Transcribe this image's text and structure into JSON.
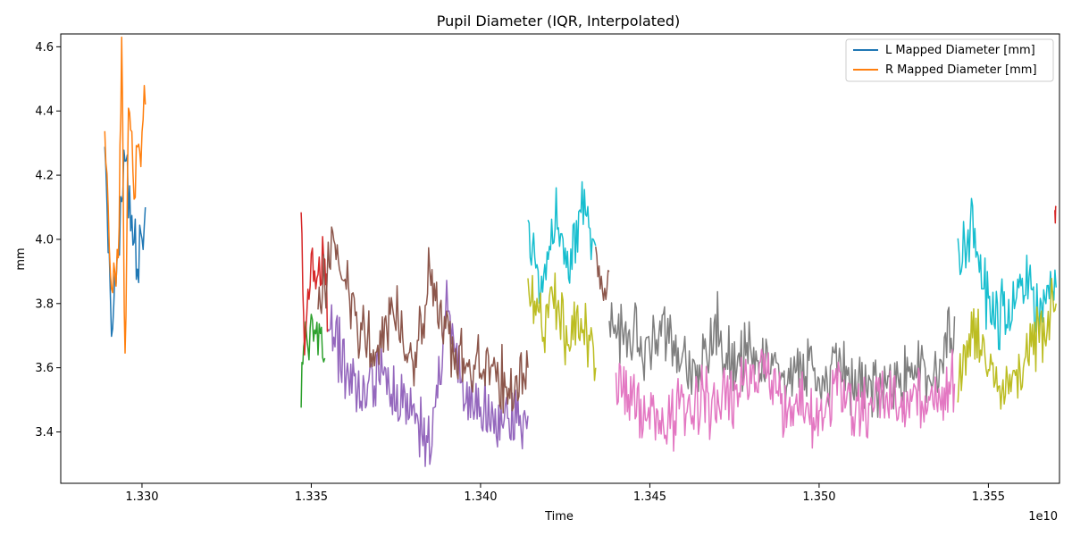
{
  "chart_data": {
    "type": "line",
    "title": "Pupil Diameter (IQR, Interpolated)",
    "xlabel": "Time",
    "ylabel": "mm",
    "x_offset_label": "1e10",
    "xlim": [
      1.3276,
      1.3571
    ],
    "ylim": [
      3.24,
      4.64
    ],
    "xticks": [
      1.33,
      1.335,
      1.34,
      1.345,
      1.35,
      1.355
    ],
    "xtick_labels": [
      "1.330",
      "1.335",
      "1.340",
      "1.345",
      "1.350",
      "1.355"
    ],
    "yticks": [
      3.4,
      3.6,
      3.8,
      4.0,
      4.2,
      4.4,
      4.6
    ],
    "ytick_labels": [
      "3.4",
      "3.6",
      "3.8",
      "4.0",
      "4.2",
      "4.4",
      "4.6"
    ],
    "grid": false,
    "legend": {
      "position": "top-right",
      "entries": [
        {
          "label": "L Mapped Diameter [mm]",
          "color": "#1f77b4"
        },
        {
          "label": "R Mapped Diameter [mm]",
          "color": "#ff7f0e"
        }
      ]
    },
    "series": [
      {
        "name": "L Mapped Diameter [mm]",
        "color": "#1f77b4",
        "x": [
          1.3289,
          1.3291,
          1.3293,
          1.3295,
          1.3297,
          1.3299,
          1.3301
        ],
        "values": [
          4.33,
          3.72,
          3.95,
          4.26,
          4.05,
          3.92,
          4.1
        ]
      },
      {
        "name": "R Mapped Diameter [mm]",
        "color": "#ff7f0e",
        "x": [
          1.3289,
          1.3291,
          1.3293,
          1.3294,
          1.3295,
          1.3296,
          1.3298,
          1.3301
        ],
        "values": [
          4.38,
          3.85,
          3.95,
          4.56,
          3.62,
          4.4,
          4.2,
          4.42
        ]
      },
      {
        "color": "#2ca02c",
        "x": [
          1.3347,
          1.3348,
          1.335,
          1.3352,
          1.3354
        ],
        "values": [
          3.52,
          3.66,
          3.72,
          3.7,
          3.63
        ]
      },
      {
        "color": "#d62728",
        "x": [
          1.3347,
          1.3348,
          1.335,
          1.3352,
          1.3354,
          1.3355
        ],
        "values": [
          4.13,
          3.62,
          3.96,
          3.85,
          3.95,
          3.72
        ]
      },
      {
        "color": "#9467bd",
        "x": [
          1.3355,
          1.336,
          1.3365,
          1.337,
          1.3375,
          1.338,
          1.3385,
          1.339,
          1.3395,
          1.34,
          1.3405,
          1.341,
          1.3414
        ],
        "values": [
          3.76,
          3.6,
          3.5,
          3.58,
          3.52,
          3.46,
          3.34,
          3.76,
          3.48,
          3.5,
          3.42,
          3.44,
          3.45
        ]
      },
      {
        "color": "#8c564b",
        "x": [
          1.3352,
          1.3356,
          1.336,
          1.3365,
          1.337,
          1.3375,
          1.338,
          1.3385,
          1.339,
          1.3395,
          1.34,
          1.3405,
          1.341,
          1.3414
        ],
        "values": [
          3.75,
          3.98,
          3.85,
          3.72,
          3.66,
          3.78,
          3.6,
          3.9,
          3.7,
          3.62,
          3.65,
          3.58,
          3.52,
          3.6
        ]
      },
      {
        "color": "#17becf",
        "x": [
          1.3414,
          1.3418,
          1.3422,
          1.3426,
          1.343,
          1.3434
        ],
        "values": [
          4.03,
          3.85,
          4.1,
          3.9,
          4.12,
          3.98
        ]
      },
      {
        "color": "#bcbd22",
        "x": [
          1.3414,
          1.3418,
          1.3422,
          1.3426,
          1.343,
          1.3434
        ],
        "values": [
          3.85,
          3.72,
          3.82,
          3.68,
          3.75,
          3.6
        ]
      },
      {
        "color": "#8c564b",
        "x": [
          1.3434,
          1.3436,
          1.3438
        ],
        "values": [
          3.95,
          3.8,
          3.9
        ]
      },
      {
        "color": "#7f7f7f",
        "x": [
          1.3438,
          1.3445,
          1.345,
          1.3455,
          1.346,
          1.3465,
          1.347,
          1.3475,
          1.348,
          1.3485,
          1.349,
          1.3495,
          1.35,
          1.3505,
          1.351,
          1.3515,
          1.352,
          1.3525,
          1.353,
          1.3535,
          1.354
        ],
        "values": [
          3.72,
          3.7,
          3.65,
          3.72,
          3.62,
          3.6,
          3.72,
          3.58,
          3.65,
          3.6,
          3.55,
          3.62,
          3.52,
          3.6,
          3.55,
          3.56,
          3.5,
          3.55,
          3.58,
          3.6,
          3.76
        ]
      },
      {
        "color": "#e377c2",
        "x": [
          1.344,
          1.3445,
          1.345,
          1.3455,
          1.346,
          1.3465,
          1.347,
          1.3475,
          1.348,
          1.3485,
          1.349,
          1.3495,
          1.35,
          1.3505,
          1.351,
          1.3515,
          1.352,
          1.3525,
          1.353,
          1.3535,
          1.354
        ],
        "values": [
          3.56,
          3.48,
          3.45,
          3.42,
          3.48,
          3.5,
          3.46,
          3.52,
          3.55,
          3.6,
          3.45,
          3.5,
          3.42,
          3.55,
          3.48,
          3.46,
          3.5,
          3.48,
          3.52,
          3.5,
          3.55
        ]
      },
      {
        "color": "#17becf",
        "x": [
          1.3541,
          1.3545,
          1.355,
          1.3555,
          1.356,
          1.3565,
          1.357
        ],
        "values": [
          3.9,
          4.05,
          3.8,
          3.75,
          3.85,
          3.8,
          3.85
        ]
      },
      {
        "color": "#bcbd22",
        "x": [
          1.3541,
          1.3545,
          1.355,
          1.3555,
          1.356,
          1.3565,
          1.357
        ],
        "values": [
          3.55,
          3.72,
          3.62,
          3.52,
          3.6,
          3.7,
          3.8
        ]
      },
      {
        "color": "#d62728",
        "x": [
          1.35695,
          1.357
        ],
        "values": [
          4.15,
          4.1
        ]
      }
    ]
  }
}
